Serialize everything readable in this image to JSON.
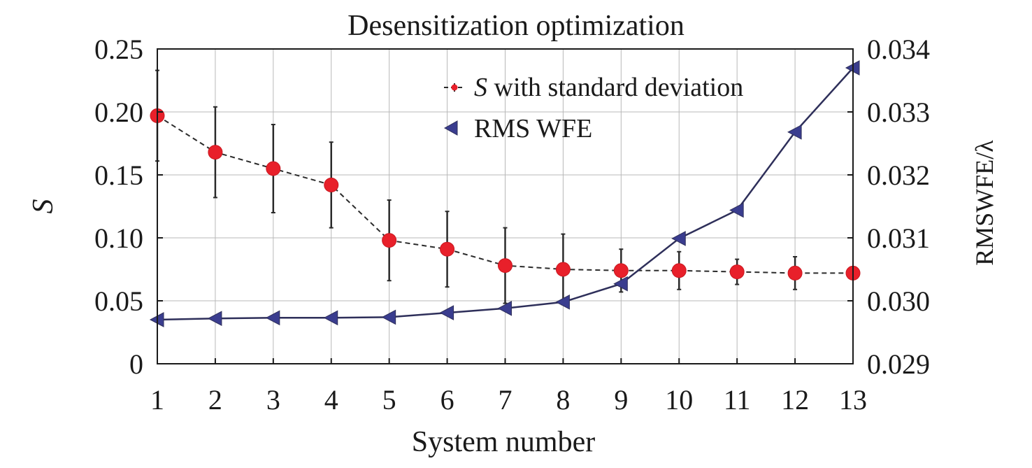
{
  "chart_data": {
    "type": "line",
    "title": "Desensitization optimization",
    "xlabel": "System number",
    "ylabel_left": "S",
    "ylabel_right": "RMSWFE/λ",
    "x": [
      1,
      2,
      3,
      4,
      5,
      6,
      7,
      8,
      9,
      10,
      11,
      12,
      13
    ],
    "xlim": [
      1,
      13
    ],
    "ylim_left": [
      0,
      0.25
    ],
    "ylim_right": [
      0.029,
      0.034
    ],
    "yticks_left": [
      "0",
      "0.05",
      "0.10",
      "0.15",
      "0.20",
      "0.25"
    ],
    "yticks_right": [
      "0.029",
      "0.030",
      "0.031",
      "0.032",
      "0.033",
      "0.034"
    ],
    "grid": true,
    "legend_position": "top-right",
    "series": [
      {
        "name": "with standard deviation",
        "name_prefix": "S",
        "axis": "left",
        "color": "#e8202a",
        "line_color": "#2b2b2b",
        "line_style": "dashed",
        "marker": "circle",
        "values": [
          0.197,
          0.168,
          0.155,
          0.142,
          0.098,
          0.091,
          0.078,
          0.075,
          0.074,
          0.074,
          0.073,
          0.072,
          0.072
        ],
        "std": [
          0.036,
          0.036,
          0.035,
          0.034,
          0.032,
          0.03,
          0.03,
          0.028,
          0.017,
          0.015,
          0.01,
          0.013,
          0.004
        ]
      },
      {
        "name": "RMS WFE",
        "axis": "right",
        "color": "#3a3d8f",
        "line_color": "#2e2f5a",
        "line_style": "solid",
        "marker": "triangle-left",
        "values": [
          0.0297,
          0.02972,
          0.02973,
          0.02973,
          0.02974,
          0.02981,
          0.02988,
          0.02998,
          0.03027,
          0.03099,
          0.03144,
          0.03268,
          0.0337
        ]
      }
    ]
  }
}
